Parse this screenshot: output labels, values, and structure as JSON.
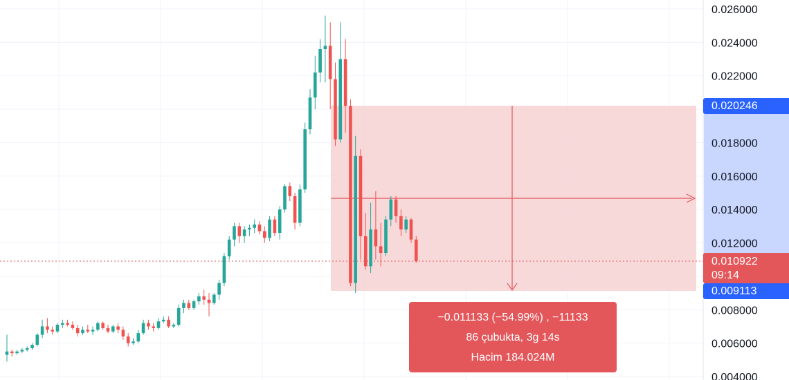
{
  "chart_data": {
    "type": "candlestick",
    "ylim": [
      0.004,
      0.026
    ],
    "y_ticks": [
      "0.026000",
      "0.024000",
      "0.022000",
      "0.018000",
      "0.016000",
      "0.014000",
      "0.012000",
      "0.008000",
      "0.006000",
      "0.004000"
    ],
    "colors": {
      "up": "#26a69a",
      "down": "#ef5350",
      "measure_fill": "#f7d2d4",
      "measure_line": "#e3565a",
      "axis_highlight": "#c9d7ff",
      "tag_blue": "#2962ff",
      "tag_red": "#e3565a"
    },
    "candles": [
      [
        0.0053,
        0.0065,
        0.0049,
        0.0055
      ],
      [
        0.0055,
        0.0056,
        0.0052,
        0.0054
      ],
      [
        0.0054,
        0.0056,
        0.0053,
        0.0055
      ],
      [
        0.0055,
        0.0057,
        0.0054,
        0.0056
      ],
      [
        0.0056,
        0.0058,
        0.0055,
        0.0057
      ],
      [
        0.0057,
        0.006,
        0.0056,
        0.0059
      ],
      [
        0.0059,
        0.0066,
        0.0058,
        0.0065
      ],
      [
        0.0065,
        0.0074,
        0.0063,
        0.007
      ],
      [
        0.007,
        0.0075,
        0.0066,
        0.0068
      ],
      [
        0.0068,
        0.007,
        0.0065,
        0.0067
      ],
      [
        0.0067,
        0.0072,
        0.0066,
        0.0071
      ],
      [
        0.0071,
        0.0074,
        0.0069,
        0.0072
      ],
      [
        0.0072,
        0.0074,
        0.007,
        0.0071
      ],
      [
        0.0071,
        0.0073,
        0.0068,
        0.0069
      ],
      [
        0.0069,
        0.0071,
        0.0064,
        0.0066
      ],
      [
        0.0066,
        0.007,
        0.0065,
        0.0068
      ],
      [
        0.0068,
        0.0071,
        0.0066,
        0.0067
      ],
      [
        0.0067,
        0.007,
        0.0065,
        0.0068
      ],
      [
        0.0068,
        0.0073,
        0.0067,
        0.0072
      ],
      [
        0.0072,
        0.0073,
        0.0068,
        0.0069
      ],
      [
        0.0069,
        0.0071,
        0.0066,
        0.0067
      ],
      [
        0.0067,
        0.0071,
        0.0066,
        0.007
      ],
      [
        0.007,
        0.0072,
        0.0066,
        0.0068
      ],
      [
        0.0068,
        0.007,
        0.0062,
        0.0064
      ],
      [
        0.0064,
        0.0066,
        0.0058,
        0.006
      ],
      [
        0.006,
        0.0063,
        0.0059,
        0.0061
      ],
      [
        0.0061,
        0.0068,
        0.006,
        0.0066
      ],
      [
        0.0066,
        0.0074,
        0.0065,
        0.0072
      ],
      [
        0.0072,
        0.0074,
        0.0068,
        0.007
      ],
      [
        0.007,
        0.0072,
        0.0067,
        0.0069
      ],
      [
        0.0069,
        0.0075,
        0.0068,
        0.0073
      ],
      [
        0.0073,
        0.0076,
        0.0072,
        0.0074
      ],
      [
        0.0074,
        0.0076,
        0.0069,
        0.007
      ],
      [
        0.007,
        0.0072,
        0.0069,
        0.0071
      ],
      [
        0.0071,
        0.0083,
        0.007,
        0.0081
      ],
      [
        0.0081,
        0.0086,
        0.0078,
        0.0084
      ],
      [
        0.0084,
        0.0086,
        0.008,
        0.0081
      ],
      [
        0.0081,
        0.0086,
        0.008,
        0.0085
      ],
      [
        0.0085,
        0.009,
        0.0083,
        0.0088
      ],
      [
        0.0088,
        0.0092,
        0.0083,
        0.0086
      ],
      [
        0.0086,
        0.009,
        0.0076,
        0.0084
      ],
      [
        0.0084,
        0.009,
        0.0083,
        0.0089
      ],
      [
        0.0089,
        0.0098,
        0.0086,
        0.0096
      ],
      [
        0.0096,
        0.0114,
        0.0094,
        0.0112
      ],
      [
        0.0112,
        0.0124,
        0.011,
        0.0122
      ],
      [
        0.0122,
        0.0132,
        0.0118,
        0.013
      ],
      [
        0.013,
        0.0132,
        0.012,
        0.0124
      ],
      [
        0.0124,
        0.013,
        0.012,
        0.0128
      ],
      [
        0.0128,
        0.0131,
        0.0124,
        0.0129
      ],
      [
        0.0129,
        0.0134,
        0.0126,
        0.0131
      ],
      [
        0.0131,
        0.0133,
        0.0125,
        0.0127
      ],
      [
        0.0127,
        0.013,
        0.012,
        0.0123
      ],
      [
        0.0123,
        0.0136,
        0.0121,
        0.0134
      ],
      [
        0.0134,
        0.0136,
        0.0124,
        0.0126
      ],
      [
        0.0126,
        0.0142,
        0.0122,
        0.014
      ],
      [
        0.014,
        0.0155,
        0.0138,
        0.0154
      ],
      [
        0.0154,
        0.0156,
        0.0145,
        0.0148
      ],
      [
        0.0148,
        0.015,
        0.0128,
        0.0132
      ],
      [
        0.0132,
        0.0155,
        0.013,
        0.0152
      ],
      [
        0.0152,
        0.0192,
        0.015,
        0.0188
      ],
      [
        0.0188,
        0.0212,
        0.0185,
        0.0207
      ],
      [
        0.0207,
        0.0232,
        0.02,
        0.0222
      ],
      [
        0.0222,
        0.0242,
        0.0216,
        0.0236
      ],
      [
        0.0236,
        0.0256,
        0.0216,
        0.0238
      ],
      [
        0.0238,
        0.0252,
        0.02,
        0.0218
      ],
      [
        0.0218,
        0.0228,
        0.0178,
        0.0182
      ],
      [
        0.0182,
        0.0252,
        0.018,
        0.023
      ],
      [
        0.023,
        0.0242,
        0.0186,
        0.0202
      ],
      [
        0.0202,
        0.0206,
        0.0094,
        0.0096
      ],
      [
        0.0096,
        0.0184,
        0.009,
        0.0172
      ],
      [
        0.0172,
        0.0176,
        0.011,
        0.0124
      ],
      [
        0.0124,
        0.0138,
        0.0104,
        0.0106
      ],
      [
        0.0106,
        0.0144,
        0.0102,
        0.0128
      ],
      [
        0.0128,
        0.0151,
        0.011,
        0.0118
      ],
      [
        0.0118,
        0.0132,
        0.0106,
        0.0114
      ],
      [
        0.0114,
        0.0136,
        0.0112,
        0.0134
      ],
      [
        0.0134,
        0.0148,
        0.013,
        0.0146
      ],
      [
        0.0146,
        0.0148,
        0.0132,
        0.0136
      ],
      [
        0.0136,
        0.014,
        0.0124,
        0.0128
      ],
      [
        0.0128,
        0.0136,
        0.0126,
        0.0134
      ],
      [
        0.0134,
        0.0135,
        0.012,
        0.0122
      ],
      [
        0.0122,
        0.0124,
        0.0108,
        0.0109
      ]
    ]
  },
  "price_tags": {
    "upper": "0.020246",
    "current": "0.010922",
    "countdown": "09:14",
    "lower": "0.009113"
  },
  "measure": {
    "change": "−0.011133 (−54.99%) , −11133",
    "bars": "86 çubukta, 3g 14s",
    "volume": "Hacim 184.024M"
  }
}
